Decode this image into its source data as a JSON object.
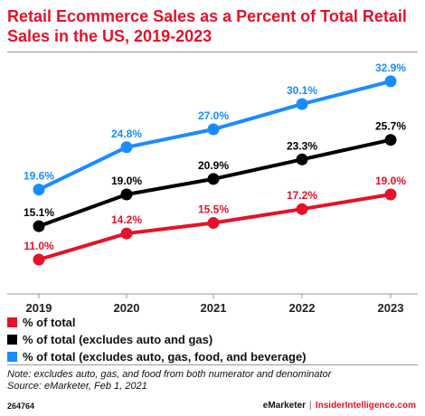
{
  "header": {
    "title": "Retail Ecommerce Sales as a Percent of Total Retail Sales in the US, 2019-2023"
  },
  "chart_data": {
    "type": "line",
    "x": [
      "2019",
      "2020",
      "2021",
      "2022",
      "2023"
    ],
    "ylim": [
      10,
      34
    ],
    "grid": false,
    "legend_position": "bottom",
    "series": [
      {
        "name": "% of total",
        "color": "#e4122a",
        "values": [
          11.0,
          14.2,
          15.5,
          17.2,
          19.0
        ],
        "labels": [
          "11.0%",
          "14.2%",
          "15.5%",
          "17.2%",
          "19.0%"
        ]
      },
      {
        "name": "% of total (excludes auto and gas)",
        "color": "#000000",
        "values": [
          15.1,
          19.0,
          20.9,
          23.3,
          25.7
        ],
        "labels": [
          "15.1%",
          "19.0%",
          "20.9%",
          "23.3%",
          "25.7%"
        ]
      },
      {
        "name": "% of total (excludes auto, gas, food, and beverage)",
        "color": "#1a8cff",
        "values": [
          19.6,
          24.8,
          27.0,
          30.1,
          32.9
        ],
        "labels": [
          "19.6%",
          "24.8%",
          "27.0%",
          "30.1%",
          "32.9%"
        ]
      }
    ]
  },
  "notes": {
    "note": "Note: excludes auto, gas, and food from both numerator and denominator",
    "source": "Source: eMarketer, Feb 1, 2021"
  },
  "footer": {
    "chart_id": "264764",
    "brand": "eMarketer",
    "separator": "|",
    "site": "InsiderIntelligence.com"
  }
}
